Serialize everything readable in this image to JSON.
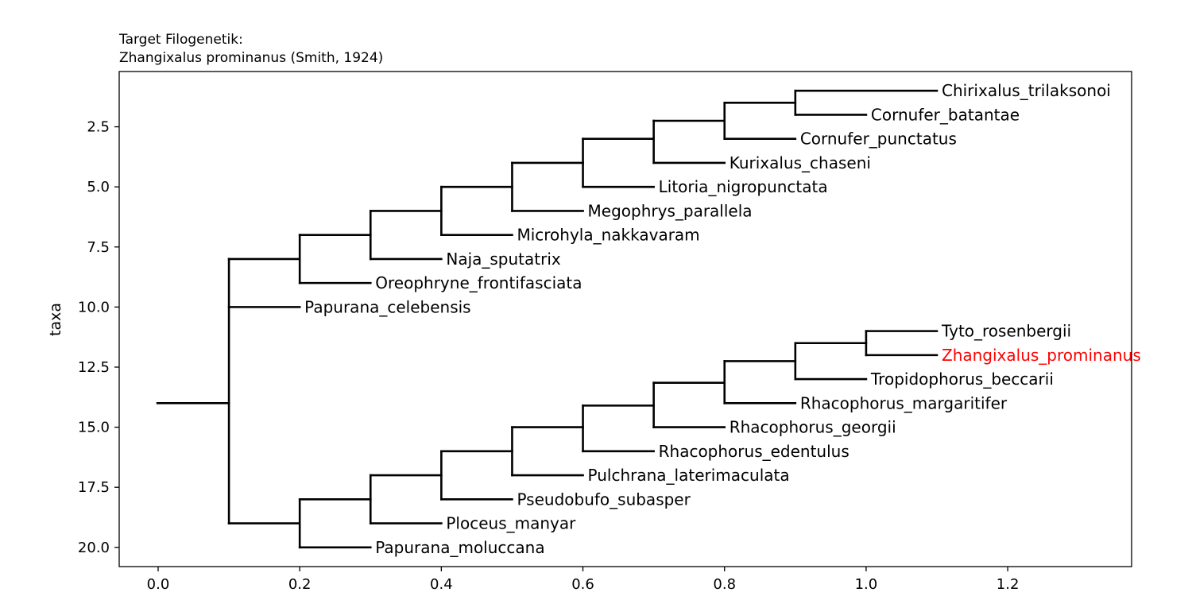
{
  "chart_data": {
    "type": "phylogenetic-tree",
    "title_lines": [
      "Target Filogenetik:",
      "Zhangixalus prominanus (Smith, 1924)"
    ],
    "xlabel": "",
    "ylabel": "taxa",
    "xlim": [
      -0.055,
      1.375
    ],
    "ylim": [
      20.8,
      0.2
    ],
    "x_ticks": [
      {
        "value": 0.0,
        "label": "0.0"
      },
      {
        "value": 0.2,
        "label": "0.2"
      },
      {
        "value": 0.4,
        "label": "0.4"
      },
      {
        "value": 0.6,
        "label": "0.6"
      },
      {
        "value": 0.8,
        "label": "0.8"
      },
      {
        "value": 1.0,
        "label": "1.0"
      },
      {
        "value": 1.2,
        "label": "1.2"
      }
    ],
    "y_ticks": [
      {
        "value": 2.5,
        "label": "2.5"
      },
      {
        "value": 5.0,
        "label": "5.0"
      },
      {
        "value": 7.5,
        "label": "7.5"
      },
      {
        "value": 10.0,
        "label": "10.0"
      },
      {
        "value": 12.5,
        "label": "12.5"
      },
      {
        "value": 15.0,
        "label": "15.0"
      },
      {
        "value": 17.5,
        "label": "17.5"
      },
      {
        "value": 20.0,
        "label": "20.0"
      }
    ],
    "highlight_color": "#ff0000",
    "default_color": "#000000",
    "leaves": [
      {
        "name": "Chirixalus_trilaksonoi",
        "x": 1.1,
        "y": 1,
        "highlight": false
      },
      {
        "name": "Cornufer_batantae",
        "x": 1.0,
        "y": 2,
        "highlight": false
      },
      {
        "name": "Cornufer_punctatus",
        "x": 0.9,
        "y": 3,
        "highlight": false
      },
      {
        "name": "Kurixalus_chaseni",
        "x": 0.8,
        "y": 4,
        "highlight": false
      },
      {
        "name": "Litoria_nigropunctata",
        "x": 0.7,
        "y": 5,
        "highlight": false
      },
      {
        "name": "Megophrys_parallela",
        "x": 0.6,
        "y": 6,
        "highlight": false
      },
      {
        "name": "Microhyla_nakkavaram",
        "x": 0.5,
        "y": 7,
        "highlight": false
      },
      {
        "name": "Naja_sputatrix",
        "x": 0.4,
        "y": 8,
        "highlight": false
      },
      {
        "name": "Oreophryne_frontifasciata",
        "x": 0.3,
        "y": 9,
        "highlight": false
      },
      {
        "name": "Papurana_celebensis",
        "x": 0.2,
        "y": 10,
        "highlight": false
      },
      {
        "name": "Tyto_rosenbergii",
        "x": 1.1,
        "y": 11,
        "highlight": false
      },
      {
        "name": "Zhangixalus_prominanus",
        "x": 1.1,
        "y": 12,
        "highlight": true
      },
      {
        "name": "Tropidophorus_beccarii",
        "x": 1.0,
        "y": 13,
        "highlight": false
      },
      {
        "name": "Rhacophorus_margaritifer",
        "x": 0.9,
        "y": 14,
        "highlight": false
      },
      {
        "name": "Rhacophorus_georgii",
        "x": 0.8,
        "y": 15,
        "highlight": false
      },
      {
        "name": "Rhacophorus_edentulus",
        "x": 0.7,
        "y": 16,
        "highlight": false
      },
      {
        "name": "Pulchrana_laterimaculata",
        "x": 0.6,
        "y": 17,
        "highlight": false
      },
      {
        "name": "Pseudobufo_subasper",
        "x": 0.5,
        "y": 18,
        "highlight": false
      },
      {
        "name": "Ploceus_manyar",
        "x": 0.4,
        "y": 19,
        "highlight": false
      },
      {
        "name": "Papurana_moluccana",
        "x": 0.3,
        "y": 20,
        "highlight": false
      }
    ],
    "branches": [
      {
        "x0": -0.001,
        "x1": 0.1,
        "y": 14.0
      },
      {
        "x": 0.1,
        "y0": 8.0,
        "y1": 19.0
      },
      {
        "x0": 0.1,
        "x1": 0.2,
        "y": 8.0
      },
      {
        "x0": 0.1,
        "x1": 0.2,
        "y": 10.0
      },
      {
        "x0": 0.1,
        "x1": 0.2,
        "y": 19.0
      },
      {
        "x": 0.2,
        "y0": 7.0,
        "y1": 9.0
      },
      {
        "x0": 0.2,
        "x1": 0.3,
        "y": 7.0
      },
      {
        "x0": 0.2,
        "x1": 0.3,
        "y": 9.0
      },
      {
        "x": 0.3,
        "y0": 6.0,
        "y1": 8.0
      },
      {
        "x0": 0.3,
        "x1": 0.4,
        "y": 6.0
      },
      {
        "x0": 0.3,
        "x1": 0.4,
        "y": 8.0
      },
      {
        "x": 0.4,
        "y0": 5.0,
        "y1": 7.0
      },
      {
        "x0": 0.4,
        "x1": 0.5,
        "y": 5.0
      },
      {
        "x0": 0.4,
        "x1": 0.5,
        "y": 7.0
      },
      {
        "x": 0.5,
        "y0": 4.0,
        "y1": 6.0
      },
      {
        "x0": 0.5,
        "x1": 0.6,
        "y": 4.0
      },
      {
        "x0": 0.5,
        "x1": 0.6,
        "y": 6.0
      },
      {
        "x": 0.6,
        "y0": 3.0,
        "y1": 5.0
      },
      {
        "x0": 0.6,
        "x1": 0.7,
        "y": 3.0
      },
      {
        "x0": 0.6,
        "x1": 0.7,
        "y": 5.0
      },
      {
        "x": 0.7,
        "y0": 2.25,
        "y1": 4.0
      },
      {
        "x0": 0.7,
        "x1": 0.8,
        "y": 2.25
      },
      {
        "x0": 0.7,
        "x1": 0.8,
        "y": 4.0
      },
      {
        "x": 0.8,
        "y0": 1.5,
        "y1": 3.0
      },
      {
        "x0": 0.8,
        "x1": 0.9,
        "y": 1.5
      },
      {
        "x0": 0.8,
        "x1": 0.9,
        "y": 3.0
      },
      {
        "x": 0.9,
        "y0": 1.0,
        "y1": 2.0
      },
      {
        "x0": 0.9,
        "x1": 1.1,
        "y": 1.0
      },
      {
        "x0": 0.9,
        "x1": 1.0,
        "y": 2.0
      },
      {
        "x": 0.2,
        "y0": 18.0,
        "y1": 20.0
      },
      {
        "x0": 0.2,
        "x1": 0.3,
        "y": 18.0
      },
      {
        "x0": 0.2,
        "x1": 0.3,
        "y": 20.0
      },
      {
        "x": 0.3,
        "y0": 17.0,
        "y1": 19.0
      },
      {
        "x0": 0.3,
        "x1": 0.4,
        "y": 17.0
      },
      {
        "x0": 0.3,
        "x1": 0.4,
        "y": 19.0
      },
      {
        "x": 0.4,
        "y0": 16.0,
        "y1": 18.0
      },
      {
        "x0": 0.4,
        "x1": 0.5,
        "y": 16.0
      },
      {
        "x0": 0.4,
        "x1": 0.5,
        "y": 18.0
      },
      {
        "x": 0.5,
        "y0": 15.0,
        "y1": 17.0
      },
      {
        "x0": 0.5,
        "x1": 0.6,
        "y": 15.0
      },
      {
        "x0": 0.5,
        "x1": 0.6,
        "y": 17.0
      },
      {
        "x": 0.6,
        "y0": 14.1,
        "y1": 16.0
      },
      {
        "x0": 0.6,
        "x1": 0.7,
        "y": 14.1
      },
      {
        "x0": 0.6,
        "x1": 0.7,
        "y": 16.0
      },
      {
        "x": 0.7,
        "y0": 13.15,
        "y1": 15.0
      },
      {
        "x0": 0.7,
        "x1": 0.8,
        "y": 13.15
      },
      {
        "x0": 0.7,
        "x1": 0.8,
        "y": 15.0
      },
      {
        "x": 0.8,
        "y0": 12.25,
        "y1": 14.0
      },
      {
        "x0": 0.8,
        "x1": 0.9,
        "y": 12.25
      },
      {
        "x0": 0.8,
        "x1": 0.9,
        "y": 14.0
      },
      {
        "x": 0.9,
        "y0": 11.5,
        "y1": 13.0
      },
      {
        "x0": 0.9,
        "x1": 1.0,
        "y": 11.5
      },
      {
        "x0": 0.9,
        "x1": 1.0,
        "y": 13.0
      },
      {
        "x": 1.0,
        "y0": 11.0,
        "y1": 12.0
      },
      {
        "x0": 1.0,
        "x1": 1.1,
        "y": 11.0
      },
      {
        "x0": 1.0,
        "x1": 1.1,
        "y": 12.0
      }
    ]
  }
}
